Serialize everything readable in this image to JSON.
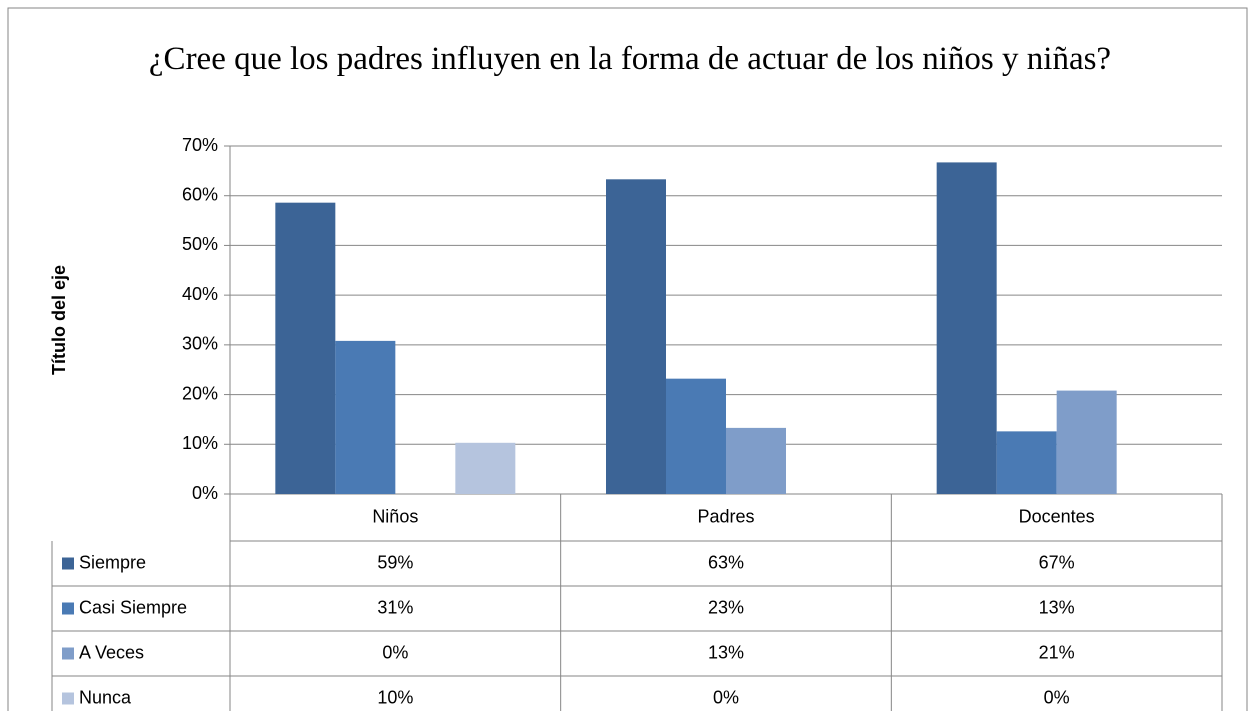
{
  "chart_data": {
    "type": "bar",
    "title": "¿Cree que los padres influyen en la forma de actuar de los niños y niñas?",
    "y_label": "Título del eje",
    "categories": [
      "Niños",
      "Padres",
      "Docentes"
    ],
    "series": [
      {
        "name": "Siempre",
        "color": "#3c6496",
        "values": [
          58.6,
          63.3,
          66.7
        ],
        "value_labels": [
          "59%",
          "63%",
          "67%"
        ]
      },
      {
        "name": "Casi Siempre",
        "color": "#4a7ab4",
        "values": [
          30.8,
          23.2,
          12.6
        ],
        "value_labels": [
          "31%",
          "23%",
          "13%"
        ]
      },
      {
        "name": "A Veces",
        "color": "#7f9dc9",
        "values": [
          0,
          13.3,
          20.8
        ],
        "value_labels": [
          "0%",
          "13%",
          "21%"
        ]
      },
      {
        "name": "Nunca",
        "color": "#b5c4de",
        "values": [
          10.3,
          0,
          0
        ],
        "value_labels": [
          "10%",
          "0%",
          "0%"
        ]
      }
    ],
    "ylim": [
      0,
      70
    ],
    "yticks": [
      {
        "value": 0,
        "label": "0%"
      },
      {
        "value": 10,
        "label": "10%"
      },
      {
        "value": 20,
        "label": "20%"
      },
      {
        "value": 30,
        "label": "30%"
      },
      {
        "value": 40,
        "label": "40%"
      },
      {
        "value": 50,
        "label": "50%"
      },
      {
        "value": 60,
        "label": "60%"
      },
      {
        "value": 70,
        "label": "70%"
      }
    ],
    "grid": true
  }
}
